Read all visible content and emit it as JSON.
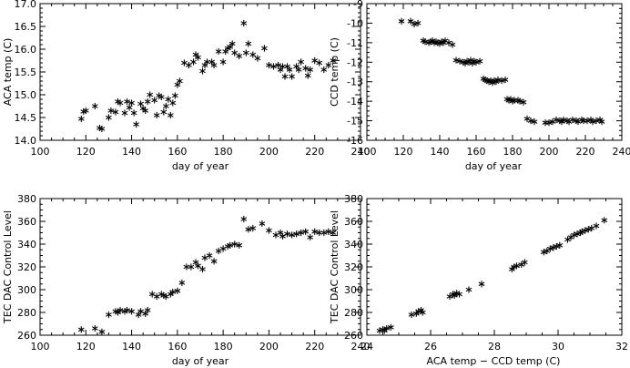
{
  "chart_data": [
    {
      "type": "scatter",
      "marker": "asterisk",
      "xlabel": "day of year",
      "ylabel": "ACA temp (C)",
      "xlim": [
        100,
        240
      ],
      "ylim": [
        14.0,
        17.0
      ],
      "xticks": [
        "100",
        "120",
        "140",
        "160",
        "180",
        "200",
        "220",
        "240"
      ],
      "yticks": [
        "14.0",
        "14.5",
        "15.0",
        "15.5",
        "16.0",
        "16.5",
        "17.0"
      ],
      "grid": false,
      "points": [
        [
          118,
          14.47
        ],
        [
          119,
          14.63
        ],
        [
          120,
          14.65
        ],
        [
          124,
          14.75
        ],
        [
          126,
          14.27
        ],
        [
          127,
          14.25
        ],
        [
          130,
          14.5
        ],
        [
          131,
          14.65
        ],
        [
          133,
          14.62
        ],
        [
          134,
          14.85
        ],
        [
          135,
          14.82
        ],
        [
          137,
          14.6
        ],
        [
          138,
          14.85
        ],
        [
          139,
          14.72
        ],
        [
          140,
          14.82
        ],
        [
          141,
          14.6
        ],
        [
          142,
          14.35
        ],
        [
          144,
          14.8
        ],
        [
          145,
          14.7
        ],
        [
          146,
          14.65
        ],
        [
          147,
          14.85
        ],
        [
          148,
          15.0
        ],
        [
          150,
          14.88
        ],
        [
          151,
          14.55
        ],
        [
          152,
          14.98
        ],
        [
          153,
          14.95
        ],
        [
          154,
          14.62
        ],
        [
          155,
          14.75
        ],
        [
          156,
          14.9
        ],
        [
          157,
          14.55
        ],
        [
          158,
          14.82
        ],
        [
          159,
          14.98
        ],
        [
          160,
          15.22
        ],
        [
          161,
          15.3
        ],
        [
          163,
          15.7
        ],
        [
          165,
          15.65
        ],
        [
          167,
          15.72
        ],
        [
          168,
          15.88
        ],
        [
          169,
          15.82
        ],
        [
          171,
          15.52
        ],
        [
          172,
          15.65
        ],
        [
          173,
          15.72
        ],
        [
          175,
          15.72
        ],
        [
          176,
          15.65
        ],
        [
          178,
          15.95
        ],
        [
          180,
          15.72
        ],
        [
          181,
          15.95
        ],
        [
          182,
          16.02
        ],
        [
          183,
          16.05
        ],
        [
          184,
          16.12
        ],
        [
          185,
          15.92
        ],
        [
          187,
          15.85
        ],
        [
          189,
          16.57
        ],
        [
          190,
          15.92
        ],
        [
          191,
          16.12
        ],
        [
          193,
          15.88
        ],
        [
          195,
          15.8
        ],
        [
          198,
          16.02
        ],
        [
          200,
          15.65
        ],
        [
          202,
          15.62
        ],
        [
          204,
          15.65
        ],
        [
          205,
          15.55
        ],
        [
          206,
          15.62
        ],
        [
          207,
          15.4
        ],
        [
          208,
          15.62
        ],
        [
          209,
          15.55
        ],
        [
          210,
          15.4
        ],
        [
          212,
          15.62
        ],
        [
          213,
          15.55
        ],
        [
          214,
          15.72
        ],
        [
          216,
          15.58
        ],
        [
          217,
          15.42
        ],
        [
          218,
          15.55
        ],
        [
          220,
          15.75
        ],
        [
          222,
          15.7
        ],
        [
          224,
          15.55
        ],
        [
          226,
          15.65
        ],
        [
          228,
          15.75
        ]
      ]
    },
    {
      "type": "scatter",
      "marker": "asterisk",
      "xlabel": "day of year",
      "ylabel": "CCD temp (C)",
      "xlim": [
        100,
        240
      ],
      "ylim": [
        -16,
        -9
      ],
      "xticks": [
        "100",
        "120",
        "140",
        "160",
        "180",
        "200",
        "220",
        "240"
      ],
      "yticks": [
        "-16",
        "-15",
        "-14",
        "-13",
        "-12",
        "-11",
        "-10",
        "-9"
      ],
      "grid": false,
      "points": [
        [
          119,
          -9.9
        ],
        [
          124,
          -9.9
        ],
        [
          126,
          -10.05
        ],
        [
          128,
          -10.0
        ],
        [
          131,
          -10.9
        ],
        [
          132,
          -10.95
        ],
        [
          134,
          -11.0
        ],
        [
          135,
          -10.95
        ],
        [
          136,
          -10.9
        ],
        [
          137,
          -11.0
        ],
        [
          138,
          -10.95
        ],
        [
          139,
          -11.0
        ],
        [
          140,
          -11.05
        ],
        [
          141,
          -10.95
        ],
        [
          142,
          -11.0
        ],
        [
          143,
          -10.9
        ],
        [
          145,
          -11.0
        ],
        [
          147,
          -11.1
        ],
        [
          149,
          -11.9
        ],
        [
          151,
          -11.95
        ],
        [
          153,
          -12.0
        ],
        [
          154,
          -12.05
        ],
        [
          155,
          -11.95
        ],
        [
          156,
          -12.0
        ],
        [
          157,
          -11.9
        ],
        [
          158,
          -12.05
        ],
        [
          159,
          -11.95
        ],
        [
          160,
          -12.0
        ],
        [
          162,
          -11.95
        ],
        [
          164,
          -12.85
        ],
        [
          165,
          -12.9
        ],
        [
          166,
          -12.95
        ],
        [
          167,
          -13.0
        ],
        [
          168,
          -12.95
        ],
        [
          169,
          -13.05
        ],
        [
          170,
          -12.95
        ],
        [
          171,
          -13.0
        ],
        [
          172,
          -12.9
        ],
        [
          174,
          -12.95
        ],
        [
          176,
          -12.9
        ],
        [
          177,
          -13.9
        ],
        [
          178,
          -13.95
        ],
        [
          179,
          -13.9
        ],
        [
          180,
          -14.0
        ],
        [
          181,
          -13.95
        ],
        [
          183,
          -13.95
        ],
        [
          184,
          -14.0
        ],
        [
          186,
          -14.05
        ],
        [
          188,
          -14.9
        ],
        [
          190,
          -15.0
        ],
        [
          192,
          -15.05
        ],
        [
          198,
          -15.1
        ],
        [
          200,
          -15.1
        ],
        [
          202,
          -15.05
        ],
        [
          204,
          -14.95
        ],
        [
          206,
          -15.0
        ],
        [
          207,
          -15.05
        ],
        [
          208,
          -14.95
        ],
        [
          210,
          -15.0
        ],
        [
          211,
          -15.05
        ],
        [
          213,
          -14.95
        ],
        [
          215,
          -15.0
        ],
        [
          216,
          -15.05
        ],
        [
          218,
          -14.95
        ],
        [
          219,
          -15.0
        ],
        [
          221,
          -15.0
        ],
        [
          223,
          -14.95
        ],
        [
          224,
          -15.05
        ],
        [
          226,
          -15.0
        ],
        [
          228,
          -14.95
        ],
        [
          229,
          -15.05
        ]
      ]
    },
    {
      "type": "scatter",
      "marker": "asterisk",
      "xlabel": "day of year",
      "ylabel": "TEC DAC Control Level",
      "xlim": [
        100,
        240
      ],
      "ylim": [
        260,
        380
      ],
      "xticks": [
        "100",
        "120",
        "140",
        "160",
        "180",
        "200",
        "220",
        "240"
      ],
      "yticks": [
        "260",
        "280",
        "300",
        "320",
        "340",
        "360",
        "380"
      ],
      "grid": false,
      "points": [
        [
          118,
          265
        ],
        [
          124,
          266
        ],
        [
          127,
          263
        ],
        [
          130,
          278
        ],
        [
          133,
          281
        ],
        [
          134,
          280
        ],
        [
          135,
          282
        ],
        [
          137,
          281
        ],
        [
          138,
          282
        ],
        [
          140,
          281
        ],
        [
          143,
          278
        ],
        [
          144,
          281
        ],
        [
          146,
          279
        ],
        [
          147,
          282
        ],
        [
          149,
          296
        ],
        [
          151,
          294
        ],
        [
          153,
          296
        ],
        [
          154,
          295
        ],
        [
          155,
          294
        ],
        [
          157,
          296
        ],
        [
          158,
          298
        ],
        [
          160,
          299
        ],
        [
          162,
          306
        ],
        [
          164,
          320
        ],
        [
          166,
          320
        ],
        [
          168,
          324
        ],
        [
          169,
          321
        ],
        [
          171,
          318
        ],
        [
          172,
          328
        ],
        [
          174,
          330
        ],
        [
          176,
          325
        ],
        [
          178,
          334
        ],
        [
          180,
          336
        ],
        [
          182,
          338
        ],
        [
          183,
          339
        ],
        [
          185,
          340
        ],
        [
          187,
          339
        ],
        [
          189,
          362
        ],
        [
          191,
          353
        ],
        [
          193,
          354
        ],
        [
          197,
          358
        ],
        [
          200,
          352
        ],
        [
          203,
          348
        ],
        [
          205,
          350
        ],
        [
          206,
          347
        ],
        [
          208,
          349
        ],
        [
          210,
          348
        ],
        [
          212,
          349
        ],
        [
          214,
          350
        ],
        [
          216,
          351
        ],
        [
          218,
          346
        ],
        [
          220,
          351
        ],
        [
          222,
          350
        ],
        [
          224,
          350
        ],
        [
          226,
          351
        ],
        [
          228,
          350
        ]
      ]
    },
    {
      "type": "scatter",
      "marker": "asterisk",
      "xlabel": "ACA temp − CCD temp (C)",
      "ylabel": "TEC DAC Control Level",
      "xlim": [
        24,
        32
      ],
      "ylim": [
        260,
        380
      ],
      "xticks": [
        "24",
        "26",
        "28",
        "30",
        "32"
      ],
      "yticks": [
        "260",
        "280",
        "300",
        "320",
        "340",
        "360",
        "380"
      ],
      "grid": false,
      "points": [
        [
          24.4,
          264
        ],
        [
          24.5,
          265
        ],
        [
          24.55,
          264
        ],
        [
          24.62,
          266
        ],
        [
          24.75,
          267
        ],
        [
          25.4,
          278
        ],
        [
          25.55,
          279
        ],
        [
          25.62,
          281
        ],
        [
          25.7,
          282
        ],
        [
          25.75,
          280
        ],
        [
          26.6,
          294
        ],
        [
          26.7,
          296
        ],
        [
          26.75,
          295
        ],
        [
          26.82,
          297
        ],
        [
          26.9,
          296
        ],
        [
          27.2,
          300
        ],
        [
          27.6,
          305
        ],
        [
          28.55,
          318
        ],
        [
          28.62,
          320
        ],
        [
          28.7,
          321
        ],
        [
          28.85,
          322
        ],
        [
          28.95,
          324
        ],
        [
          29.55,
          333
        ],
        [
          29.65,
          334
        ],
        [
          29.75,
          336
        ],
        [
          29.85,
          337
        ],
        [
          29.95,
          338
        ],
        [
          30.05,
          339
        ],
        [
          30.3,
          344
        ],
        [
          30.4,
          346
        ],
        [
          30.5,
          348
        ],
        [
          30.6,
          349
        ],
        [
          30.7,
          350
        ],
        [
          30.75,
          351
        ],
        [
          30.85,
          352
        ],
        [
          30.95,
          353
        ],
        [
          31.05,
          354
        ],
        [
          31.2,
          356
        ],
        [
          31.45,
          361
        ]
      ]
    }
  ]
}
